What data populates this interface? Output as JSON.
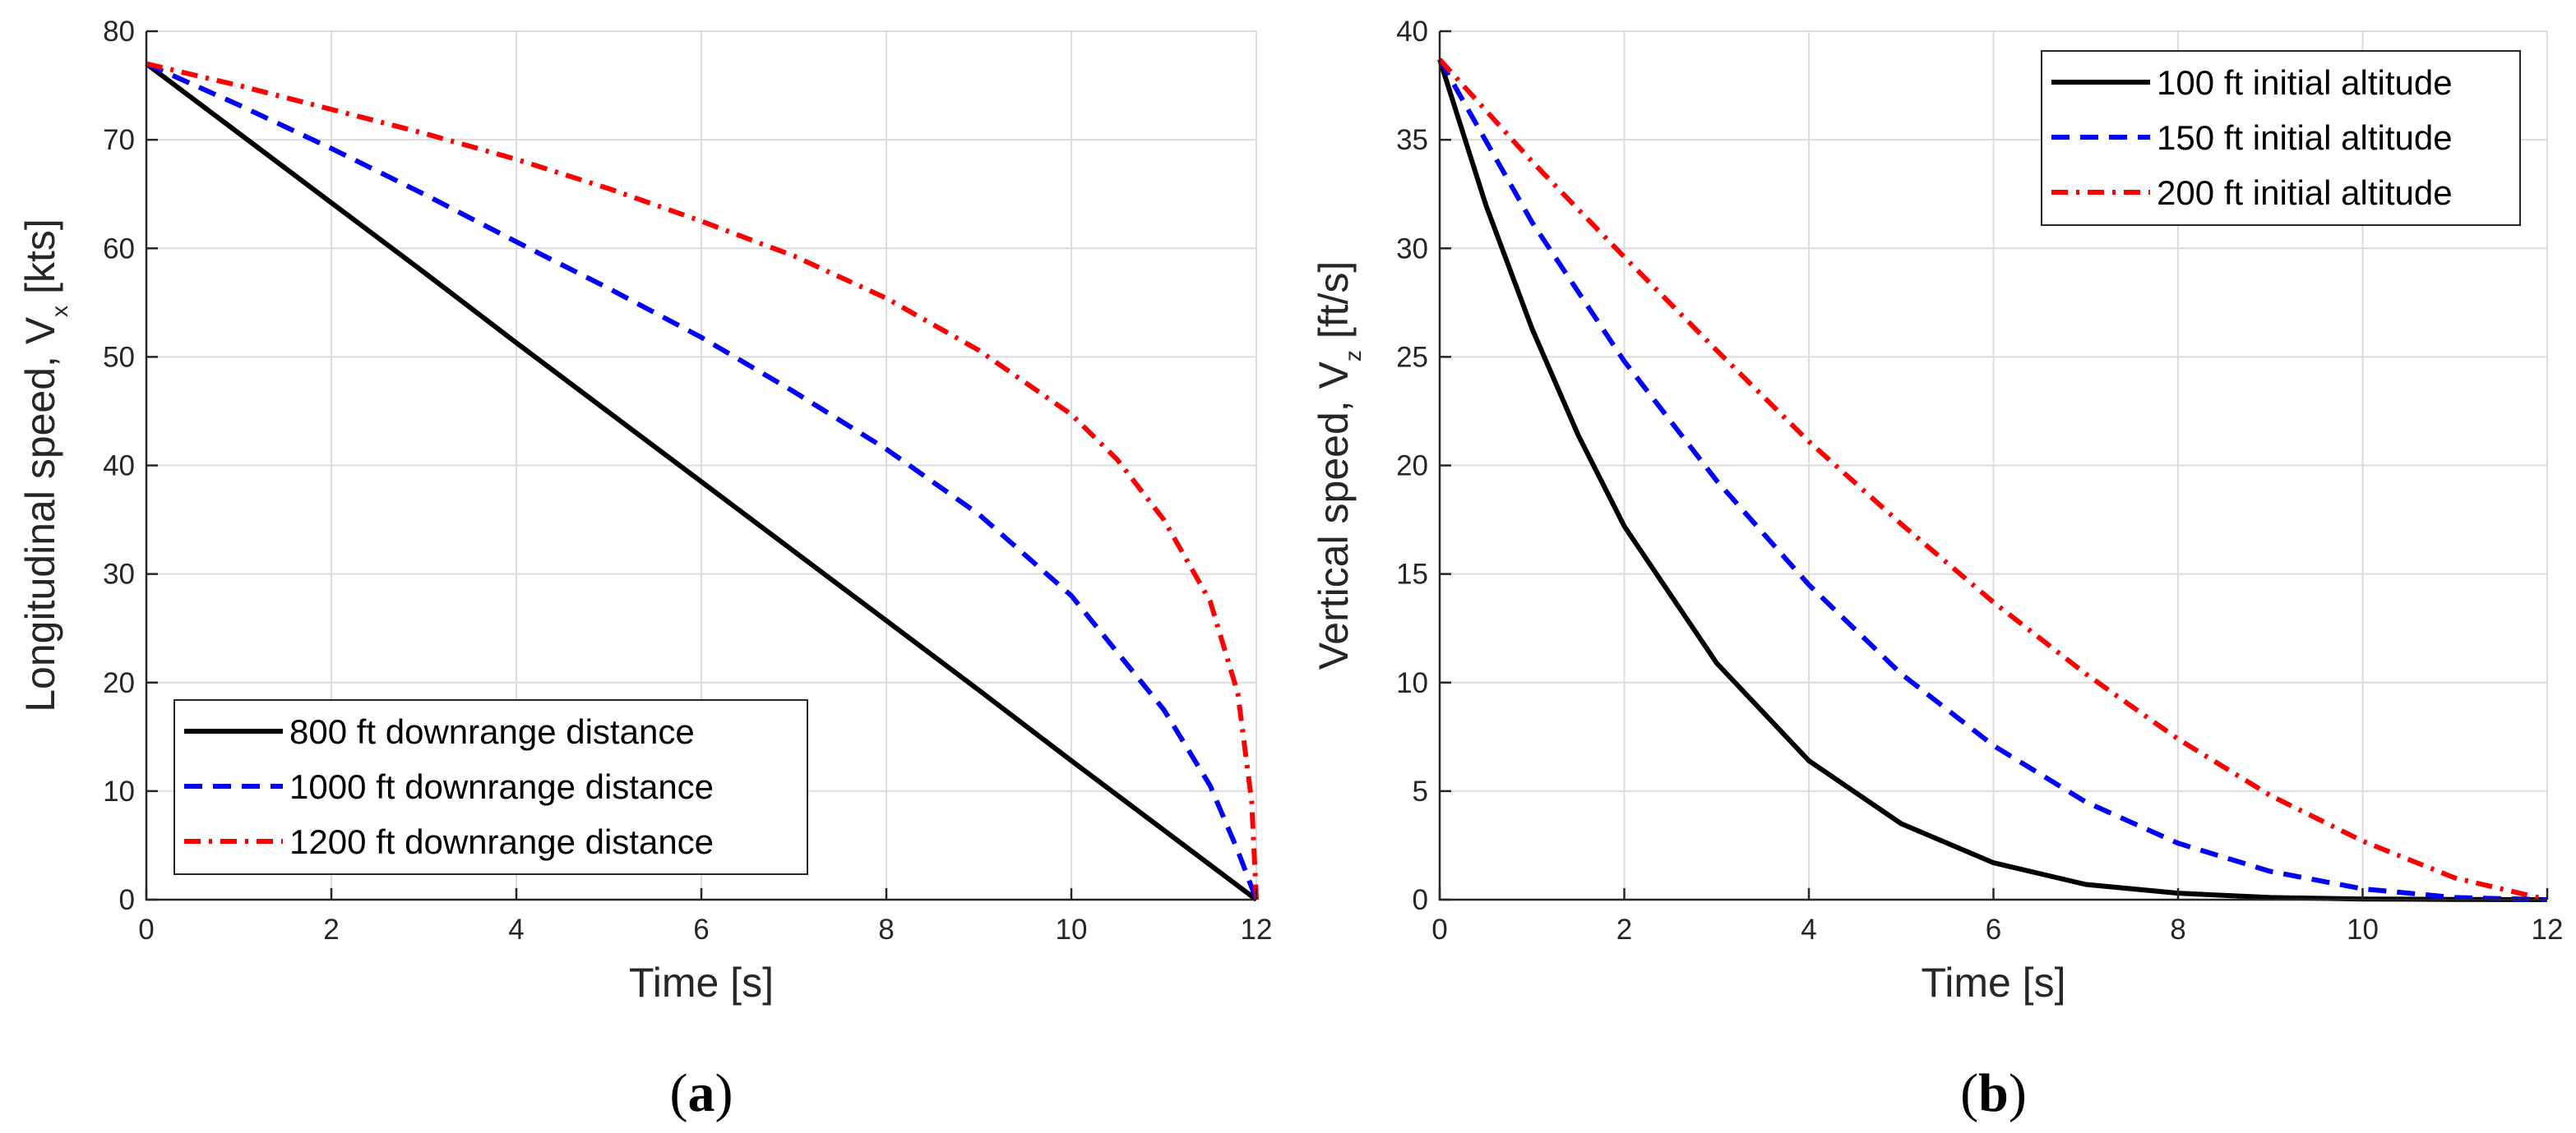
{
  "chart_data": [
    {
      "type": "line",
      "panel": "a",
      "caption": "a",
      "xlabel": "Time [s]",
      "ylabel": "Longitudinal speed, V",
      "ylabel_sub": "x",
      "ylabel_unit": " [kts]",
      "xlim": [
        0,
        12
      ],
      "ylim": [
        0,
        80
      ],
      "xticks": [
        0,
        2,
        4,
        6,
        8,
        10,
        12
      ],
      "yticks": [
        0,
        10,
        20,
        30,
        40,
        50,
        60,
        70,
        80
      ],
      "grid": true,
      "legend_position": "bottom-left",
      "series": [
        {
          "name": "800 ft downrange distance",
          "style": "solid",
          "color": "#000000",
          "x": [
            0,
            1,
            2,
            3,
            4,
            5,
            6,
            7,
            8,
            9,
            10,
            11,
            12
          ],
          "y": [
            77,
            70.6,
            64.2,
            57.8,
            51.3,
            44.9,
            38.5,
            32.1,
            25.7,
            19.3,
            12.8,
            6.4,
            0
          ]
        },
        {
          "name": "1000 ft downrange distance",
          "style": "dashed",
          "color": "#0000ff",
          "x": [
            0,
            1,
            2,
            3,
            4,
            5,
            6,
            7,
            8,
            9,
            10,
            11,
            11.5,
            11.8,
            12
          ],
          "y": [
            77,
            73.2,
            69.2,
            65.0,
            60.6,
            56.3,
            51.8,
            46.8,
            41.5,
            35.5,
            28.0,
            17.5,
            10.5,
            4.5,
            0
          ]
        },
        {
          "name": "1200 ft downrange distance",
          "style": "dashdot",
          "color": "#ff0000",
          "x": [
            0,
            1,
            2,
            3,
            4,
            5,
            6,
            7,
            8,
            9,
            10,
            10.5,
            11,
            11.5,
            11.8,
            11.95,
            12
          ],
          "y": [
            77,
            75.0,
            72.8,
            70.6,
            68.2,
            65.5,
            62.5,
            59.3,
            55.4,
            50.6,
            44.7,
            40.5,
            35.0,
            27.5,
            19.0,
            9.0,
            0
          ]
        }
      ]
    },
    {
      "type": "line",
      "panel": "b",
      "caption": "b",
      "xlabel": "Time [s]",
      "ylabel": "Vertical speed, V",
      "ylabel_sub": "z",
      "ylabel_unit": " [ft/s]",
      "xlim": [
        0,
        12
      ],
      "ylim": [
        0,
        40
      ],
      "xticks": [
        0,
        2,
        4,
        6,
        8,
        10,
        12
      ],
      "yticks": [
        0,
        5,
        10,
        15,
        20,
        25,
        30,
        35,
        40
      ],
      "grid": true,
      "legend_position": "top-right",
      "series": [
        {
          "name": "100 ft initial altitude",
          "style": "solid",
          "color": "#000000",
          "x": [
            0,
            0.5,
            1,
            1.5,
            2,
            3,
            4,
            5,
            6,
            7,
            8,
            9,
            10,
            11,
            12
          ],
          "y": [
            38.7,
            32.0,
            26.3,
            21.4,
            17.2,
            10.9,
            6.4,
            3.5,
            1.7,
            0.7,
            0.3,
            0.1,
            0.03,
            0.01,
            0
          ]
        },
        {
          "name": "150 ft initial altitude",
          "style": "dashed",
          "color": "#0000ff",
          "x": [
            0,
            1,
            2,
            3,
            4,
            5,
            6,
            7,
            8,
            9,
            10,
            11,
            12
          ],
          "y": [
            38.7,
            31.2,
            24.8,
            19.3,
            14.5,
            10.4,
            7.1,
            4.5,
            2.6,
            1.3,
            0.5,
            0.1,
            0
          ]
        },
        {
          "name": "200 ft initial altitude",
          "style": "dashdot",
          "color": "#ff0000",
          "x": [
            0,
            1,
            2,
            3,
            4,
            5,
            6,
            7,
            8,
            9,
            10,
            11,
            12
          ],
          "y": [
            38.7,
            34.0,
            29.6,
            25.3,
            21.1,
            17.3,
            13.7,
            10.4,
            7.4,
            4.8,
            2.7,
            1.0,
            0
          ]
        }
      ]
    }
  ]
}
